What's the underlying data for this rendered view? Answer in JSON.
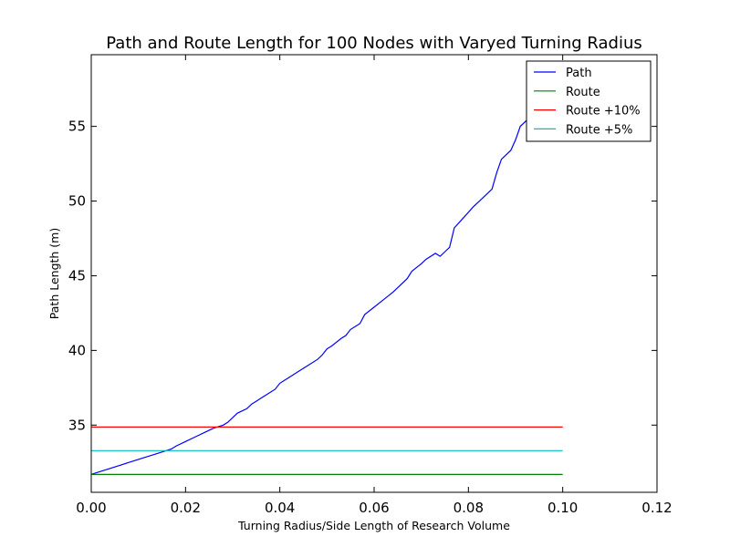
{
  "chart_data": {
    "type": "line",
    "title": "Path and Route Length for 100 Nodes with Varyed Turning Radius",
    "xlabel": "Turning Radius/Side Length of Research Volume",
    "ylabel": "Path Length (m)",
    "xlim": [
      0.0,
      0.12
    ],
    "ylim": [
      30.5,
      59.8
    ],
    "xticks": [
      0.0,
      0.02,
      0.04,
      0.06,
      0.08,
      0.1,
      0.12
    ],
    "xtick_labels": [
      "0.00",
      "0.02",
      "0.04",
      "0.06",
      "0.08",
      "0.10",
      "0.12"
    ],
    "yticks": [
      35,
      40,
      45,
      50,
      55
    ],
    "ytick_labels": [
      "35",
      "40",
      "45",
      "50",
      "55"
    ],
    "grid": false,
    "legend_position": "top-right",
    "series": [
      {
        "name": "Path",
        "color": "#0000ff",
        "x": [
          0.0,
          0.002,
          0.004,
          0.006,
          0.008,
          0.01,
          0.012,
          0.013,
          0.015,
          0.017,
          0.018,
          0.02,
          0.022,
          0.024,
          0.026,
          0.028,
          0.029,
          0.03,
          0.031,
          0.033,
          0.034,
          0.035,
          0.036,
          0.037,
          0.039,
          0.04,
          0.042,
          0.044,
          0.046,
          0.048,
          0.049,
          0.05,
          0.051,
          0.053,
          0.054,
          0.055,
          0.057,
          0.058,
          0.06,
          0.062,
          0.064,
          0.065,
          0.067,
          0.068,
          0.07,
          0.071,
          0.073,
          0.074,
          0.075,
          0.076,
          0.077,
          0.079,
          0.081,
          0.083,
          0.085,
          0.086,
          0.087,
          0.089,
          0.09,
          0.091,
          0.093,
          0.095,
          0.097
        ],
        "y": [
          31.7,
          31.9,
          32.1,
          32.3,
          32.5,
          32.7,
          32.9,
          33.0,
          33.2,
          33.4,
          33.6,
          33.9,
          34.2,
          34.5,
          34.8,
          35.0,
          35.2,
          35.5,
          35.8,
          36.1,
          36.4,
          36.6,
          36.8,
          37.0,
          37.4,
          37.8,
          38.2,
          38.6,
          39.0,
          39.4,
          39.7,
          40.1,
          40.3,
          40.8,
          41.0,
          41.4,
          41.8,
          42.4,
          42.9,
          43.4,
          43.9,
          44.2,
          44.8,
          45.3,
          45.8,
          46.1,
          46.5,
          46.3,
          46.6,
          46.9,
          48.2,
          48.9,
          49.6,
          50.2,
          50.8,
          51.9,
          52.8,
          53.4,
          54.1,
          55.0,
          55.6,
          56.4,
          57.2
        ],
        "extends_beyond_legend": true
      },
      {
        "name": "Route",
        "color": "#008000",
        "x": [
          0.0,
          0.1
        ],
        "y": [
          31.7,
          31.7
        ]
      },
      {
        "name": "Route +10%",
        "color": "#ff0000",
        "x": [
          0.0,
          0.1
        ],
        "y": [
          34.87,
          34.87
        ]
      },
      {
        "name": "Route +5%",
        "color": "#00bfbf",
        "x": [
          0.0,
          0.1
        ],
        "y": [
          33.29,
          33.29
        ]
      }
    ]
  }
}
